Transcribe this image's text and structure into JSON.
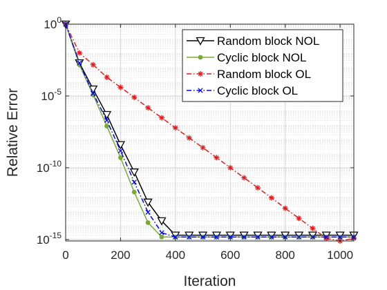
{
  "chart_data": {
    "type": "line",
    "title": "",
    "xlabel": "Iteration",
    "ylabel": "Relative Error",
    "yscale": "log",
    "xlim": [
      0,
      1050
    ],
    "ylim": [
      1e-15,
      1
    ],
    "x_ticks": [
      "0",
      "200",
      "400",
      "600",
      "800",
      "1000"
    ],
    "y_ticks": [
      {
        "base": "10",
        "exp": "0",
        "value": 1
      },
      {
        "base": "10",
        "exp": "-5",
        "value": 1e-05
      },
      {
        "base": "10",
        "exp": "-10",
        "value": 1e-10
      },
      {
        "base": "10",
        "exp": "-15",
        "value": 1e-15
      }
    ],
    "grid": true,
    "legend_position": "top-right",
    "series": [
      {
        "name": "Random block NOL",
        "color": "#000000",
        "line_style": "solid",
        "marker": "triangle-down",
        "x": [
          0,
          50,
          100,
          150,
          200,
          250,
          300,
          350,
          400,
          450,
          500,
          550,
          600,
          650,
          700,
          750,
          800,
          850,
          900,
          950,
          1000,
          1050
        ],
        "y": [
          1,
          0.002,
          3e-05,
          5e-07,
          4e-09,
          5e-11,
          4e-13,
          2e-14,
          2e-15,
          2e-15,
          2e-15,
          2e-15,
          2e-15,
          2e-15,
          2e-15,
          2e-15,
          2e-15,
          2e-15,
          2e-15,
          2e-15,
          2e-15,
          2e-15
        ]
      },
      {
        "name": "Cyclic block NOL",
        "color": "#77ac30",
        "line_style": "solid",
        "marker": "dot",
        "x": [
          0,
          50,
          100,
          150,
          200,
          250,
          300,
          350,
          400,
          450,
          500,
          550,
          600,
          650,
          700,
          750,
          800,
          850,
          900,
          950,
          1000,
          1050
        ],
        "y": [
          1,
          0.0015,
          1.2e-05,
          8e-08,
          5e-10,
          2e-12,
          1.5e-14,
          1.5e-15,
          1.5e-15,
          1.5e-15,
          1.5e-15,
          1.5e-15,
          1.5e-15,
          1.5e-15,
          1.5e-15,
          1.5e-15,
          1.5e-15,
          1.5e-15,
          1.5e-15,
          1.5e-15,
          1.5e-15,
          1.5e-15
        ]
      },
      {
        "name": "Random block OL",
        "color": "#e41a1c",
        "line_style": "dashdot",
        "marker": "asterisk",
        "x": [
          0,
          50,
          100,
          150,
          200,
          250,
          300,
          350,
          400,
          450,
          500,
          550,
          600,
          650,
          700,
          750,
          800,
          850,
          900,
          950,
          1000,
          1050
        ],
        "y": [
          1,
          0.01,
          0.0015,
          0.0002,
          4e-05,
          8e-06,
          1.5e-06,
          3e-07,
          6e-08,
          1.2e-08,
          2.5e-09,
          5e-10,
          1e-10,
          2e-11,
          4e-12,
          8e-13,
          1.5e-13,
          3e-14,
          6e-15,
          1.2e-15,
          3e-16,
          1.2e-15
        ]
      },
      {
        "name": "Cyclic block OL",
        "color": "#0000ff",
        "line_style": "dashdot",
        "marker": "x",
        "x": [
          0,
          50,
          100,
          150,
          200,
          250,
          300,
          350,
          400,
          450,
          500,
          550,
          600,
          650,
          700,
          750,
          800,
          850,
          900,
          950,
          1000,
          1050
        ],
        "y": [
          1,
          0.002,
          1.5e-05,
          2e-07,
          1.5e-09,
          1e-11,
          8e-14,
          3e-15,
          1.5e-15,
          1.5e-15,
          1.5e-15,
          1.5e-15,
          1.5e-15,
          1.5e-15,
          1.5e-15,
          1.5e-15,
          1.5e-15,
          1.5e-15,
          1.5e-15,
          1.5e-15,
          1.5e-15,
          1.5e-15
        ]
      }
    ]
  }
}
